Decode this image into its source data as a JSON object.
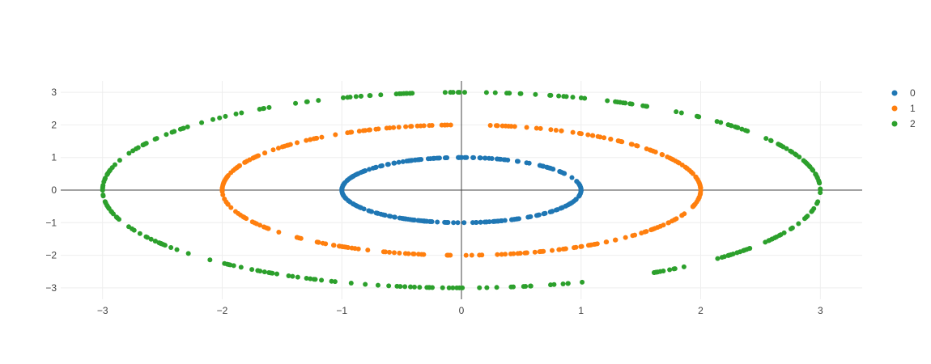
{
  "chart_data": {
    "type": "scatter",
    "title": "",
    "xlabel": "",
    "ylabel": "",
    "xlim": [
      -3.35,
      3.35
    ],
    "ylim": [
      -3.35,
      3.35
    ],
    "grid": true,
    "zero_lines": true,
    "legend_position": "top-right",
    "x_ticks": [
      -3,
      -2,
      -1,
      0,
      1,
      2,
      3
    ],
    "x_tick_labels": [
      "−3",
      "−2",
      "−1",
      "0",
      "1",
      "2",
      "3"
    ],
    "y_ticks": [
      -3,
      -2,
      -1,
      0,
      1,
      2,
      3
    ],
    "y_tick_labels": [
      "−3",
      "−2",
      "−1",
      "0",
      "1",
      "2",
      "3"
    ],
    "series": [
      {
        "name": "0",
        "shape": "ellipse",
        "center": [
          0,
          0
        ],
        "x_radius": 1,
        "y_radius": 1,
        "points": 300,
        "color": "#1f77b4"
      },
      {
        "name": "1",
        "shape": "ellipse",
        "center": [
          0,
          0
        ],
        "x_radius": 2,
        "y_radius": 2,
        "points": 300,
        "color": "#ff7f0e"
      },
      {
        "name": "2",
        "shape": "ellipse",
        "center": [
          0,
          0
        ],
        "x_radius": 3,
        "y_radius": 3,
        "points": 300,
        "color": "#2ca02c"
      }
    ]
  }
}
